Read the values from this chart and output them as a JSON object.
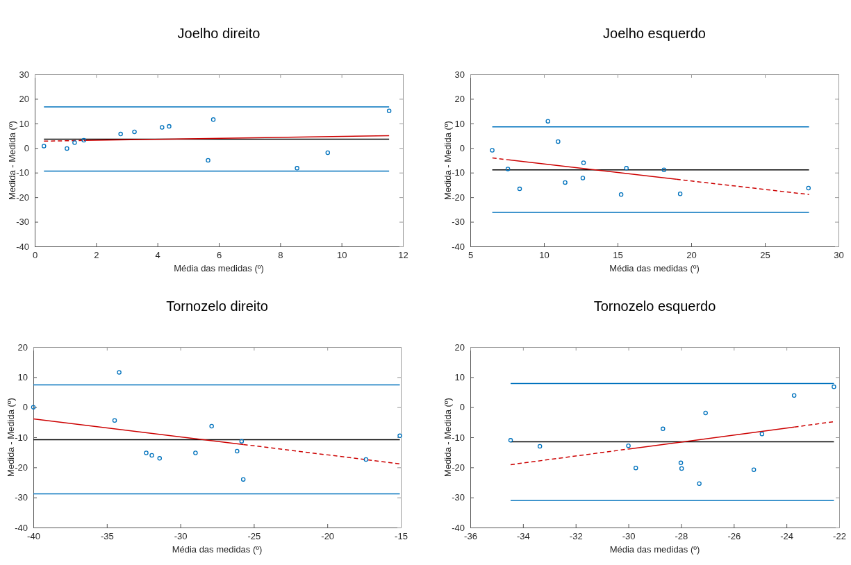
{
  "chart_data": [
    {
      "type": "scatter",
      "title": "Joelho direito",
      "xlabel": "Média das medidas (º)",
      "ylabel": "Medida - Medida (º)",
      "xlim": [
        0,
        12
      ],
      "xticks": [
        0,
        2,
        4,
        6,
        8,
        10,
        12
      ],
      "ylim": [
        -40,
        30
      ],
      "yticks": [
        -40,
        -30,
        -20,
        -10,
        0,
        10,
        20,
        30
      ],
      "grid": false,
      "marker": "circle",
      "series": [
        {
          "color": "#0072bd",
          "x": [
            0.3,
            1.05,
            1.3,
            1.6,
            2.8,
            3.25,
            4.15,
            4.38,
            5.65,
            5.82,
            8.55,
            9.55,
            11.55
          ],
          "values": [
            0.8,
            -0.2,
            2.2,
            3.2,
            5.7,
            6.6,
            8.4,
            8.8,
            -5,
            11.6,
            -8.2,
            -1.9,
            15.1
          ]
        },
        {
          "type": "line",
          "marker": "none",
          "color": "#cc0000",
          "line_style": "solid",
          "x": [
            1.6,
            11.55
          ],
          "values": [
            3.1,
            5.0
          ]
        },
        {
          "type": "line",
          "marker": "none",
          "color": "#cc0000",
          "line_style": "dashed",
          "x": [
            0.3,
            1.6
          ],
          "values": [
            2.8,
            3.1
          ]
        }
      ],
      "ref_lines": [
        {
          "axis": "y",
          "value": 3.6,
          "color": "#000000"
        },
        {
          "axis": "y",
          "value": 16.7,
          "color": "#0072bd"
        },
        {
          "axis": "y",
          "value": -9.4,
          "color": "#0072bd"
        }
      ]
    },
    {
      "type": "scatter",
      "title": "Joelho esquerdo",
      "xlabel": "Média das medidas (º)",
      "ylabel": "Medida - Medida (º)",
      "xlim": [
        5,
        30
      ],
      "xticks": [
        5,
        10,
        15,
        20,
        25,
        30
      ],
      "ylim": [
        -40,
        30
      ],
      "yticks": [
        -40,
        -30,
        -20,
        -10,
        0,
        10,
        20,
        30
      ],
      "grid": false,
      "marker": "circle",
      "series": [
        {
          "color": "#0072bd",
          "x": [
            6.49,
            7.55,
            8.35,
            10.27,
            10.96,
            11.44,
            12.64,
            12.69,
            15.24,
            15.6,
            18.15,
            19.25,
            27.96
          ],
          "values": [
            -0.9,
            -8.5,
            -16.6,
            10.9,
            2.6,
            -14,
            -12.2,
            -6,
            -18.9,
            -8.2,
            -8.9,
            -18.6,
            -16.3
          ]
        },
        {
          "type": "line",
          "marker": "none",
          "color": "#cc0000",
          "line_style": "solid",
          "x": [
            7.6,
            19
          ],
          "values": [
            -4.8,
            -12.7
          ]
        },
        {
          "type": "line",
          "marker": "none",
          "color": "#cc0000",
          "line_style": "dashed",
          "x": [
            6.5,
            7.6
          ],
          "values": [
            -4.0,
            -4.8
          ]
        },
        {
          "type": "line",
          "marker": "none",
          "color": "#cc0000",
          "line_style": "dashed",
          "x": [
            19,
            28
          ],
          "values": [
            -12.7,
            -18.9
          ]
        }
      ],
      "ref_lines": [
        {
          "axis": "y",
          "value": -8.9,
          "color": "#000000"
        },
        {
          "axis": "y",
          "value": 8.6,
          "color": "#0072bd"
        },
        {
          "axis": "y",
          "value": -26.2,
          "color": "#0072bd"
        }
      ]
    },
    {
      "type": "scatter",
      "title": "Tornozelo direito",
      "xlabel": "Média das medidas (º)",
      "ylabel": "Medida - Medida (º)",
      "xlim": [
        -40,
        -15
      ],
      "xticks": [
        -40,
        -35,
        -30,
        -25,
        -20,
        -15
      ],
      "ylim": [
        -40,
        20
      ],
      "yticks": [
        -40,
        -30,
        -20,
        -10,
        0,
        10,
        20
      ],
      "grid": false,
      "marker": "circle",
      "series": [
        {
          "color": "#0072bd",
          "x": [
            -40,
            -34.47,
            -34.16,
            -32.32,
            -31.94,
            -31.41,
            -28.97,
            -27.87,
            -26.14,
            -25.83,
            -25.72,
            -17.37,
            -15.07
          ],
          "values": [
            0,
            -4.4,
            11.6,
            -15.2,
            -16,
            -17,
            -15.2,
            -6.3,
            -14.6,
            -11.3,
            -24,
            -17.4,
            -9.5
          ]
        },
        {
          "type": "line",
          "marker": "none",
          "color": "#cc0000",
          "line_style": "solid",
          "x": [
            -40,
            -25.7
          ],
          "values": [
            -3.9,
            -12.4
          ]
        },
        {
          "type": "line",
          "marker": "none",
          "color": "#cc0000",
          "line_style": "dashed",
          "x": [
            -25.7,
            -15.1
          ],
          "values": [
            -12.4,
            -18.8
          ]
        }
      ],
      "ref_lines": [
        {
          "axis": "y",
          "value": -10.8,
          "color": "#000000"
        },
        {
          "axis": "y",
          "value": 7.4,
          "color": "#0072bd"
        },
        {
          "axis": "y",
          "value": -28.8,
          "color": "#0072bd"
        }
      ]
    },
    {
      "type": "scatter",
      "title": "Tornozelo esquerdo",
      "xlabel": "Média das medidas (º)",
      "ylabel": "Medida - Medida (º)",
      "xlim": [
        -36,
        -22
      ],
      "xticks": [
        -36,
        -34,
        -32,
        -30,
        -28,
        -26,
        -24,
        -22
      ],
      "ylim": [
        -40,
        20
      ],
      "yticks": [
        -40,
        -30,
        -20,
        -10,
        0,
        10,
        20
      ],
      "grid": false,
      "marker": "circle",
      "series": [
        {
          "color": "#0072bd",
          "x": [
            -34.47,
            -33.36,
            -30.0,
            -29.72,
            -28.69,
            -28.01,
            -27.98,
            -27.31,
            -27.07,
            -25.24,
            -24.93,
            -23.71,
            -22.2
          ],
          "values": [
            -11,
            -13,
            -12.8,
            -20.2,
            -7.2,
            -18.5,
            -20.4,
            -25.4,
            -1.9,
            -20.8,
            -8.9,
            3.9,
            6.8
          ]
        },
        {
          "type": "line",
          "marker": "none",
          "color": "#cc0000",
          "line_style": "solid",
          "x": [
            -30,
            -23.7
          ],
          "values": [
            -13.9,
            -6.6
          ]
        },
        {
          "type": "line",
          "marker": "none",
          "color": "#cc0000",
          "line_style": "dashed",
          "x": [
            -34.47,
            -30
          ],
          "values": [
            -19.1,
            -13.9
          ]
        },
        {
          "type": "line",
          "marker": "none",
          "color": "#cc0000",
          "line_style": "dashed",
          "x": [
            -23.7,
            -22.2
          ],
          "values": [
            -6.6,
            -4.8
          ]
        }
      ],
      "ref_lines": [
        {
          "axis": "y",
          "value": -11.5,
          "color": "#000000"
        },
        {
          "axis": "y",
          "value": 7.9,
          "color": "#0072bd"
        },
        {
          "axis": "y",
          "value": -31,
          "color": "#0072bd"
        }
      ]
    }
  ]
}
